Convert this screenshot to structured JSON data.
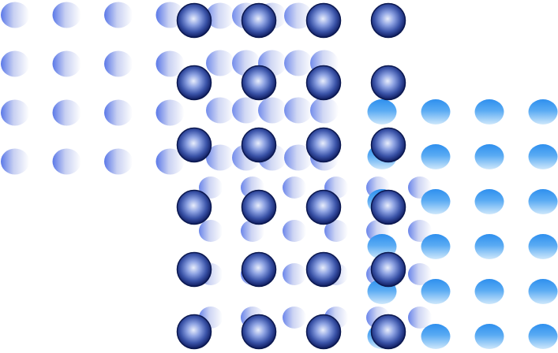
{
  "colors": {
    "background": "#ffffff",
    "pale_blue_light": "#ffffff",
    "pale_blue_mid": "#c8d0f2",
    "pale_blue_dark": "#5a78e8",
    "sky_blue_top": "#2e8fee",
    "sky_blue_bottom": "#cfe8fb",
    "navy_rim": "#0b1850",
    "navy_mid": "#3a53a8",
    "navy_highlight": "#e9eefc"
  },
  "layers": [
    {
      "name": "pale-sphere-grid-left",
      "icon": "pale-blue-sphere-icon",
      "rows": 4,
      "cols": 4
    },
    {
      "name": "pale-sphere-grid-middle",
      "icon": "pale-blue-sphere-icon",
      "rows": 4,
      "cols": 5
    },
    {
      "name": "pale-sphere-grid-lower",
      "icon": "pale-blue-sphere-icon",
      "rows": 4,
      "cols": 6
    },
    {
      "name": "sky-sphere-grid-right",
      "icon": "sky-blue-sphere-icon",
      "rows": 6,
      "cols": 4
    },
    {
      "name": "navy-orb-grid-front",
      "icon": "navy-orb-icon",
      "rows": 6,
      "cols": 4
    }
  ]
}
